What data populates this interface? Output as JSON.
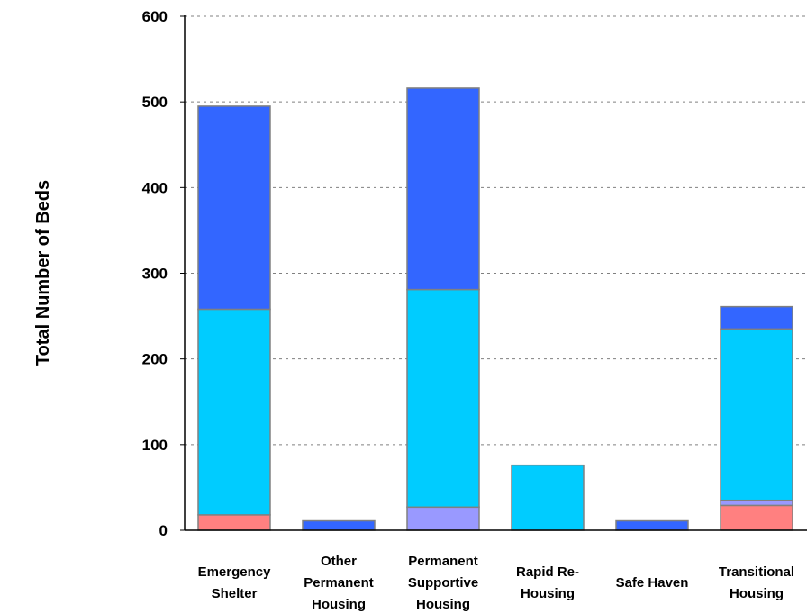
{
  "chart_data": {
    "type": "bar",
    "stacked": true,
    "title": "",
    "xlabel": "",
    "ylabel": "Total Number of Beds",
    "ylim": [
      0,
      600
    ],
    "yticks": [
      0,
      100,
      200,
      300,
      400,
      500,
      600
    ],
    "ytick_labels": [
      "0",
      "100",
      "200",
      "300",
      "400",
      "500",
      "600"
    ],
    "grid": true,
    "legend": "none",
    "categories": [
      [
        "Emergency",
        "Shelter"
      ],
      [
        "Other",
        "Permanent",
        "Housing"
      ],
      [
        "Permanent",
        "Supportive",
        "Housing"
      ],
      [
        "Rapid Re-",
        "Housing"
      ],
      [
        "Safe Haven"
      ],
      [
        "Transitional",
        "Housing"
      ]
    ],
    "series": [
      {
        "color": "#ff8080",
        "values": [
          18,
          0,
          0,
          0,
          0,
          29
        ]
      },
      {
        "color": "#9999ff",
        "values": [
          0,
          0,
          27,
          0,
          0,
          6
        ]
      },
      {
        "color": "#00ccff",
        "values": [
          240,
          0,
          254,
          76,
          0,
          200
        ]
      },
      {
        "color": "#3366ff",
        "values": [
          237,
          11,
          235,
          0,
          11,
          26
        ]
      }
    ]
  }
}
